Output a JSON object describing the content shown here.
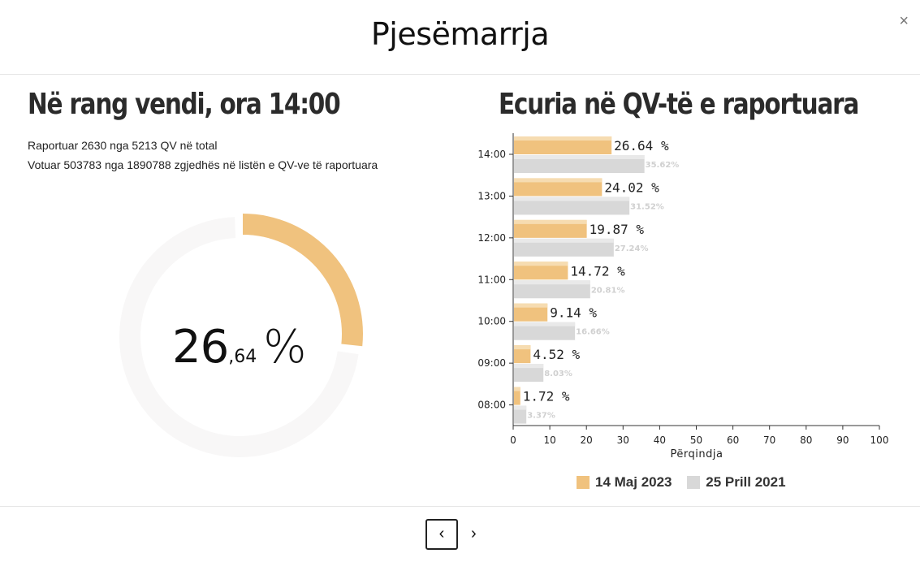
{
  "modal": {
    "title": "Pjesëmarrja",
    "close_label": "×"
  },
  "left": {
    "title": "Në rang vendi, ora 14:00",
    "line1": "Raportuar 2630 nga 5213 QV në total",
    "line2": "Votuar 503783 nga 1890788 zgjedhës në listën e QV-ve të raportuara",
    "percent_int": "26",
    "percent_dec": ",64",
    "percent_sign": "%",
    "percent_value": 26.64
  },
  "right": {
    "title": "Ecuria në QV-të e raportuara"
  },
  "colors": {
    "current": "#f0c27e",
    "previous": "#d8d8d8",
    "donut_track": "#f8f7f7"
  },
  "chart_data": {
    "type": "bar",
    "orientation": "horizontal",
    "categories": [
      "14:00",
      "13:00",
      "12:00",
      "11:00",
      "10:00",
      "09:00",
      "08:00"
    ],
    "series": [
      {
        "name": "14 Maj 2023",
        "values": [
          26.64,
          24.02,
          19.87,
          14.72,
          9.14,
          4.52,
          1.72
        ],
        "labels": [
          "26.64 %",
          "24.02 %",
          "19.87 %",
          "14.72 %",
          "9.14 %",
          "4.52 %",
          "1.72 %"
        ]
      },
      {
        "name": "25 Prill 2021",
        "values": [
          35.62,
          31.52,
          27.24,
          20.81,
          16.66,
          8.03,
          3.37
        ],
        "labels": [
          "35.62%",
          "31.52%",
          "27.24%",
          "20.81%",
          "16.66%",
          "8.03%",
          "3.37%"
        ]
      }
    ],
    "xlabel": "Përqindja",
    "xlim": [
      0,
      100
    ],
    "xticks": [
      "0",
      "10",
      "20",
      "30",
      "40",
      "50",
      "60",
      "70",
      "80",
      "90",
      "100"
    ],
    "legend": "bottom"
  },
  "footer": {
    "prev_label": "‹",
    "next_label": "›"
  }
}
